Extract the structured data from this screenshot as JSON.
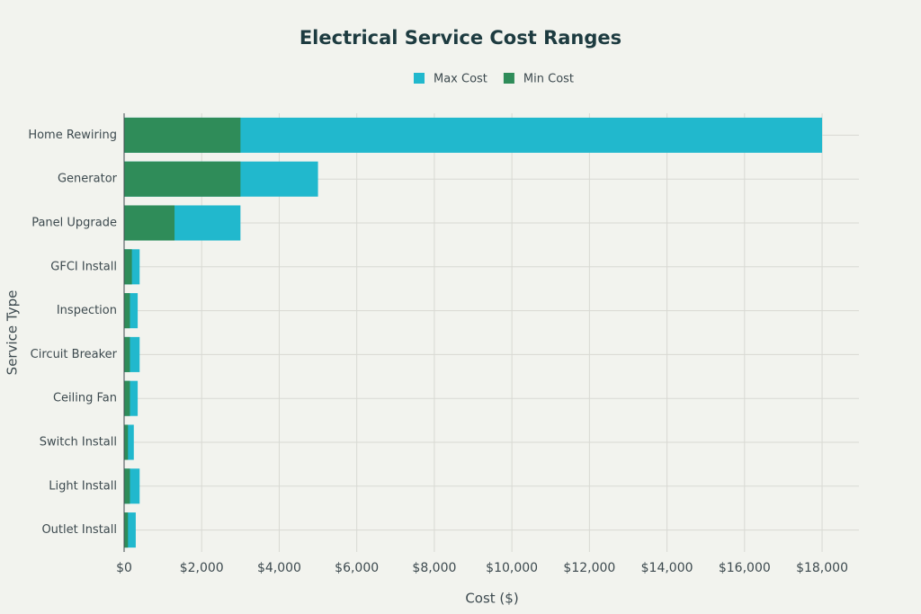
{
  "chart_data": {
    "type": "bar",
    "orientation": "horizontal",
    "title": "Electrical Service Cost Ranges",
    "x_label": "Cost ($)",
    "y_label": "Service Type",
    "categories": [
      "Home Rewiring",
      "Generator",
      "Panel Upgrade",
      "GFCI Install",
      "Inspection",
      "Circuit Breaker",
      "Ceiling Fan",
      "Switch Install",
      "Light Install",
      "Outlet Install"
    ],
    "series": [
      {
        "name": "Max Cost",
        "color": "#21b8cd",
        "values": [
          18000,
          5000,
          3000,
          400,
          350,
          400,
          350,
          250,
          400,
          300
        ]
      },
      {
        "name": "Min Cost",
        "color": "#2f8c59",
        "values": [
          3000,
          3000,
          1300,
          200,
          150,
          150,
          150,
          100,
          150,
          100
        ]
      }
    ],
    "xlim": [
      0,
      18950
    ],
    "xticks": [
      {
        "value": 0,
        "label": "$0"
      },
      {
        "value": 2000,
        "label": "$2,000"
      },
      {
        "value": 4000,
        "label": "$4,000"
      },
      {
        "value": 6000,
        "label": "$6,000"
      },
      {
        "value": 8000,
        "label": "$8,000"
      },
      {
        "value": 10000,
        "label": "$10,000"
      },
      {
        "value": 12000,
        "label": "$12,000"
      },
      {
        "value": 14000,
        "label": "$14,000"
      },
      {
        "value": 16000,
        "label": "$16,000"
      },
      {
        "value": 18000,
        "label": "$18,000"
      }
    ],
    "grid": true,
    "legend": "top"
  }
}
